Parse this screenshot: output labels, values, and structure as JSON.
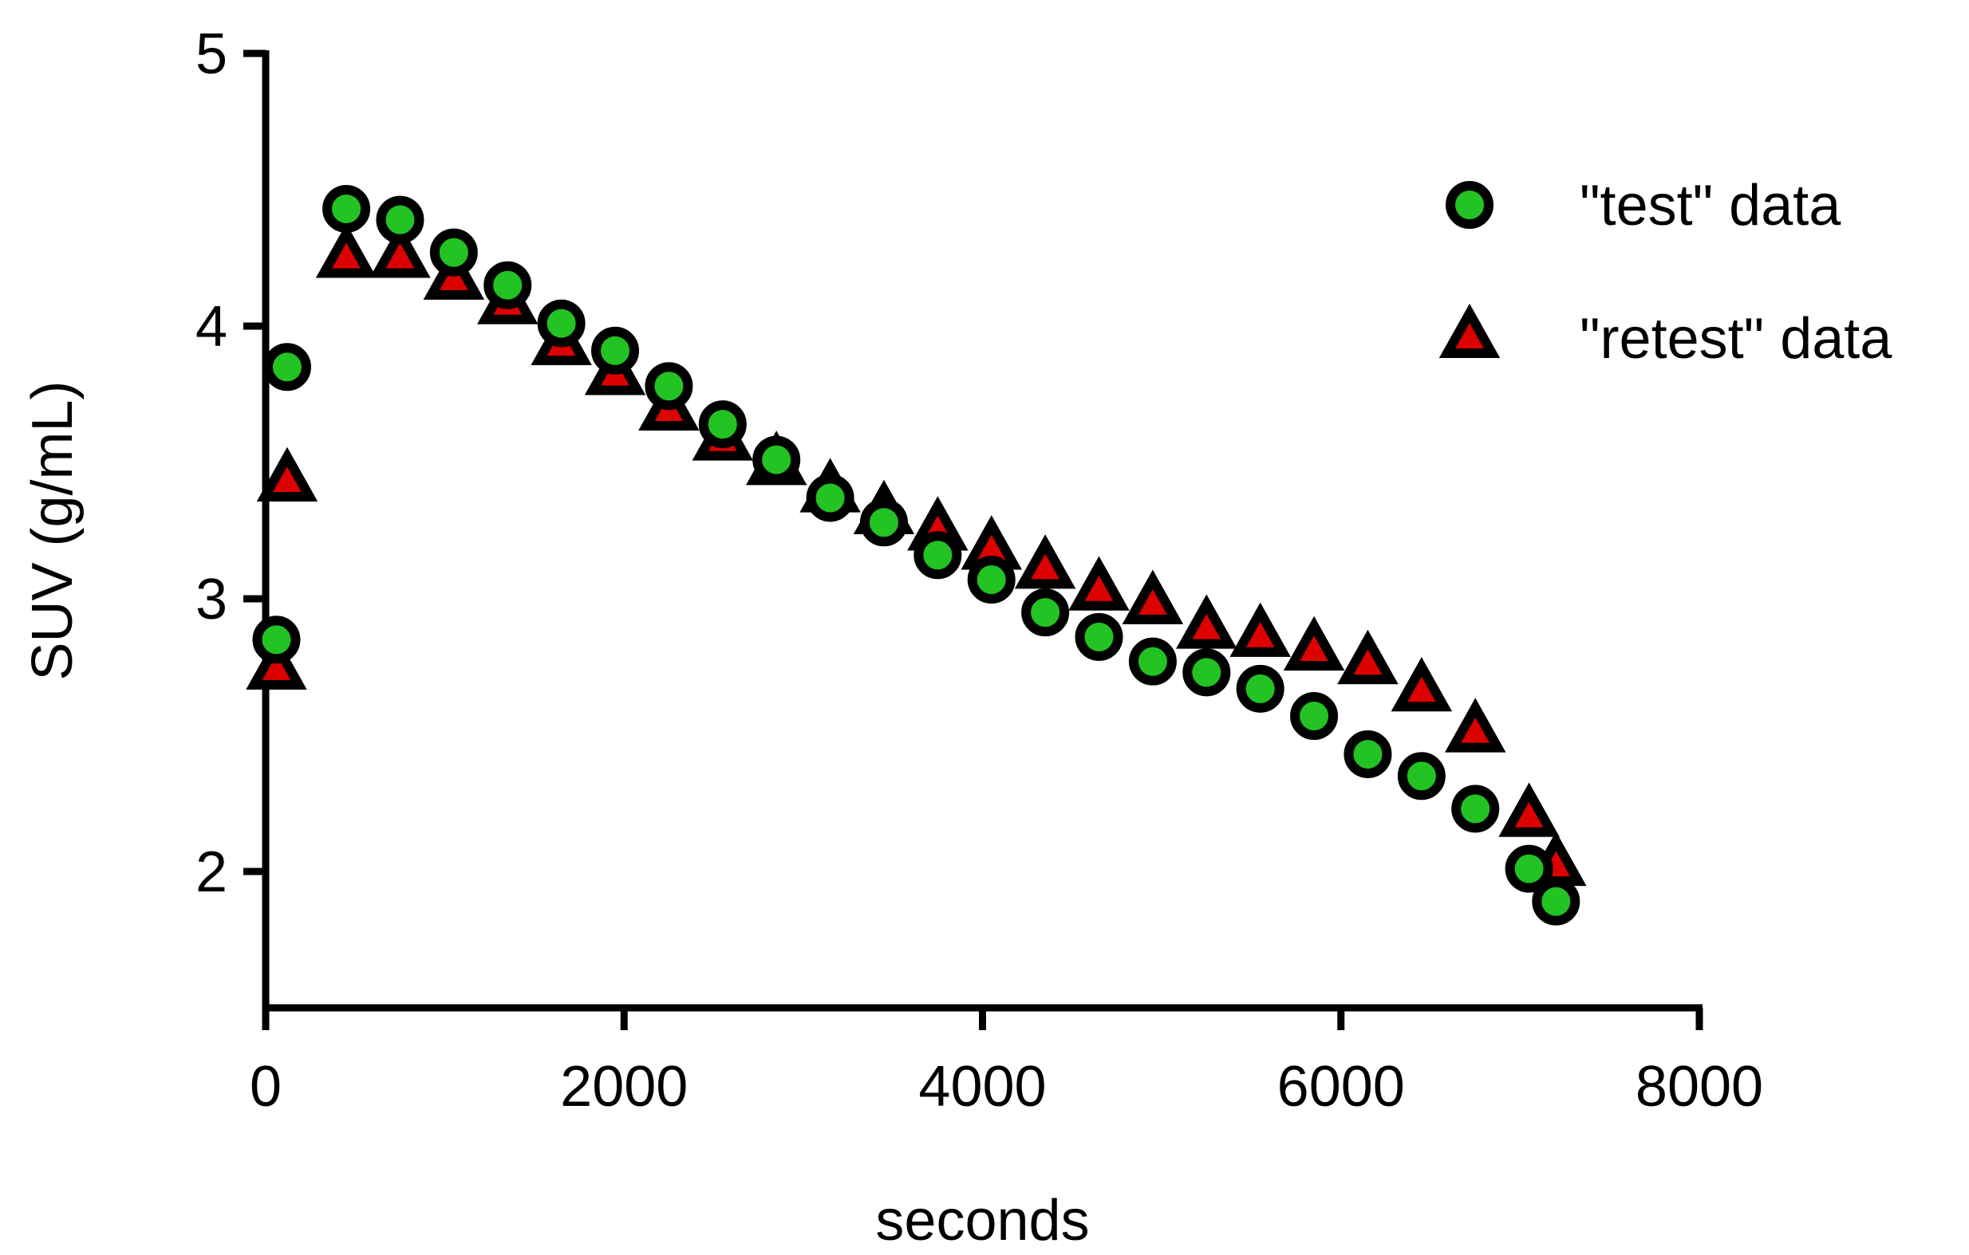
{
  "chart_data": {
    "type": "scatter",
    "title": "",
    "xlabel": "seconds",
    "ylabel": "SUV (g/mL)",
    "xlim": [
      0,
      8000
    ],
    "ylim": [
      1.5,
      5
    ],
    "xticks": [
      0,
      2000,
      4000,
      6000,
      8000
    ],
    "yticks": [
      2,
      3,
      4,
      5
    ],
    "grid": false,
    "legend_position": "top-right",
    "series": [
      {
        "name": "\"test\" data",
        "marker": "circle",
        "fill": "#22c322",
        "stroke": "#000000",
        "x": [
          60,
          120,
          450,
          750,
          1050,
          1350,
          1650,
          1950,
          2250,
          2550,
          2850,
          3150,
          3450,
          3750,
          4050,
          4350,
          4650,
          4950,
          5250,
          5550,
          5850,
          6150,
          6450,
          6750,
          7050,
          7200
        ],
        "y": [
          2.85,
          3.85,
          4.43,
          4.39,
          4.27,
          4.15,
          4.01,
          3.91,
          3.78,
          3.64,
          3.51,
          3.37,
          3.28,
          3.16,
          3.07,
          2.95,
          2.86,
          2.77,
          2.73,
          2.67,
          2.57,
          2.43,
          2.35,
          2.23,
          2.01,
          1.89
        ]
      },
      {
        "name": "\"retest\" data",
        "marker": "triangle",
        "fill": "#dd0000",
        "stroke": "#000000",
        "x": [
          60,
          120,
          450,
          750,
          1050,
          1350,
          1650,
          1950,
          2250,
          2550,
          2850,
          3150,
          3450,
          3750,
          4050,
          4350,
          4650,
          4950,
          5250,
          5550,
          5850,
          6150,
          6450,
          6750,
          7050,
          7200
        ],
        "y": [
          2.74,
          3.43,
          4.25,
          4.25,
          4.17,
          4.08,
          3.93,
          3.82,
          3.69,
          3.58,
          3.49,
          3.39,
          3.31,
          3.25,
          3.18,
          3.11,
          3.03,
          2.98,
          2.89,
          2.86,
          2.81,
          2.76,
          2.66,
          2.51,
          2.2,
          2.02
        ]
      }
    ]
  }
}
